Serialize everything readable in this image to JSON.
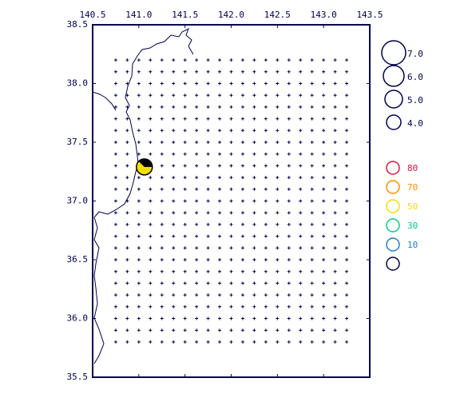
{
  "chart_data": {
    "type": "map",
    "xlim": [
      140.5,
      143.5
    ],
    "ylim": [
      35.5,
      38.5
    ],
    "xticks": [
      140.5,
      {
        "value": 141,
        "label": "141.0"
      },
      141.5,
      {
        "value": 142,
        "label": "142.0"
      },
      142.5,
      {
        "value": 143,
        "label": "143.0"
      },
      143.5
    ],
    "yticks": [
      35.5,
      {
        "value": 36,
        "label": "36.0"
      },
      36.5,
      {
        "value": 37,
        "label": "37.0"
      },
      37.5,
      {
        "value": 38,
        "label": "38.0"
      },
      38.5
    ],
    "grid_x": [
      140.75,
      140.875,
      141,
      141.125,
      141.25,
      141.375,
      141.5,
      141.625,
      141.75,
      141.875,
      142,
      142.125,
      142.25,
      142.375,
      142.5,
      142.625,
      142.75,
      142.875,
      143,
      143.125,
      143.25
    ],
    "grid_y": [
      38.2,
      38.1,
      38,
      37.9,
      37.8,
      37.7,
      37.6,
      37.5,
      37.4,
      37.3,
      37.2,
      37.1,
      37,
      36.9,
      36.8,
      36.7,
      36.6,
      36.5,
      36.4,
      36.3,
      36.2,
      36.1,
      36,
      35.9,
      35.8
    ],
    "events": [
      {
        "lon": 141.06,
        "lat": 37.29,
        "magnitude": 4.5,
        "depth": 50
      }
    ],
    "magnitude_legend": [
      {
        "value": 7,
        "label": "7.0"
      },
      {
        "value": 6,
        "label": "6.0"
      },
      {
        "value": 5,
        "label": "5.0"
      },
      {
        "value": 4,
        "label": "4.0"
      }
    ],
    "depth_legend": {
      "values": [
        80,
        70,
        50,
        30,
        10,
        null
      ],
      "colors": [
        "#dc143c",
        "#ff8c00",
        "#f0e000",
        "#00d080",
        "#1e7fd0",
        "#000050"
      ]
    }
  }
}
